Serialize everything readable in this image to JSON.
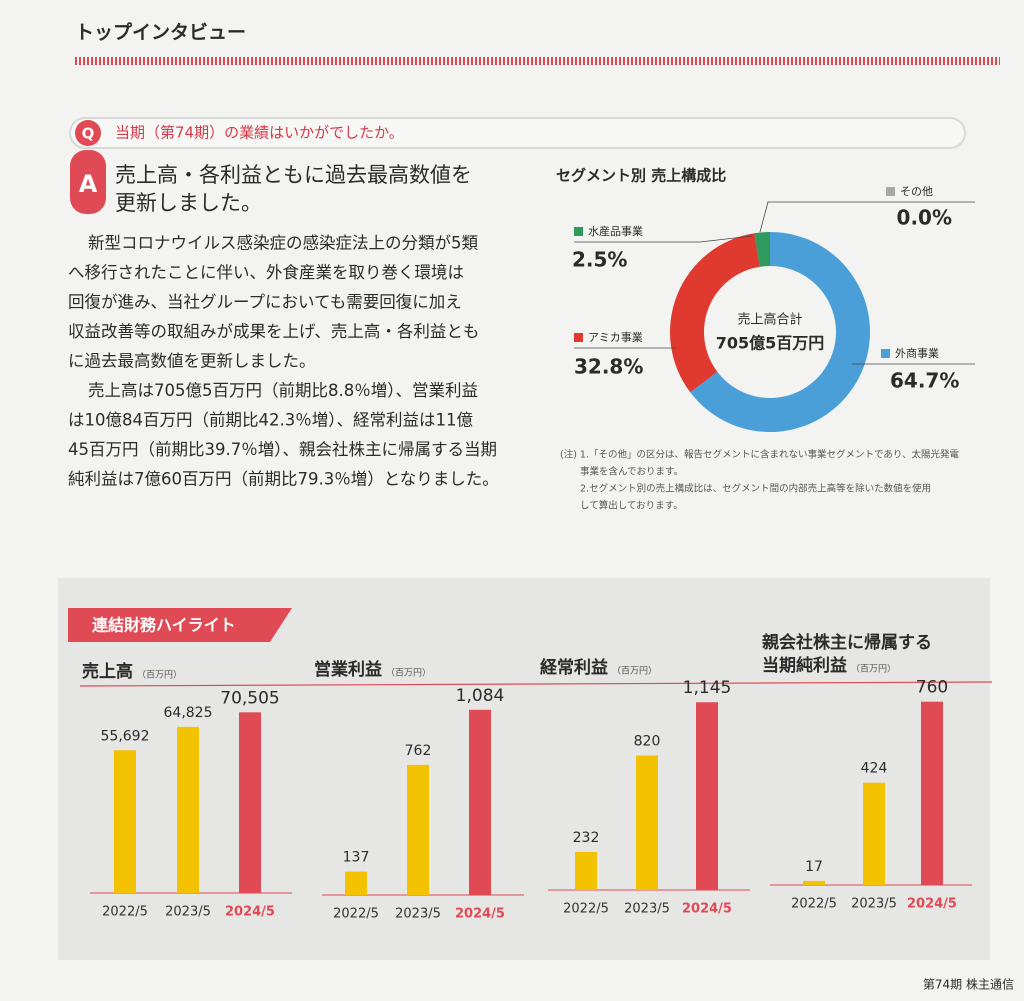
{
  "header": {
    "title": "トップインタビュー"
  },
  "question": {
    "icon": "Q",
    "text": "当期（第74期）の業績はいかがでしたか。"
  },
  "answer": {
    "icon": "A",
    "lines": [
      "売上高・各利益ともに過去最高数値を",
      "更新しました。"
    ]
  },
  "paragraphs": [
    [
      "新型コロナウイルス感染症の感染症法上の分類が5類",
      "へ移行されたことに伴い、外食産業を取り巻く環境は",
      "回復が進み、当社グループにおいても需要回復に加え",
      "収益改善等の取組みが成果を上げ、売上高・各利益とも",
      "に過去最高数値を更新しました。"
    ],
    [
      "売上高は705億5百万円（前期比8.8％増）、営業利益",
      "は10億84百万円（前期比42.3％増）、経常利益は11億",
      "45百万円（前期比39.7％増）、親会社株主に帰属する当期",
      "純利益は7億60百万円（前期比79.3％増）となりました。"
    ]
  ],
  "notes": [
    "(注) 1.「その他」の区分は、報告セグメントに含まれない事業セグメントであり、太陽光発電",
    "事業を含んでおります。",
    "2.セグメント別の売上構成比は、セグメント間の内部売上高等を除いた数値を使用",
    "して算出しております。"
  ],
  "section_title": "連結財務ハイライト",
  "footer": "第74期 株主通信",
  "chart_data": [
    {
      "type": "pie",
      "title": "セグメント別 売上構成比",
      "center_label": [
        "売上高合計",
        "705億5百万円"
      ],
      "donut": true,
      "series": [
        {
          "name": "外商事業",
          "color": "#4b9fd8",
          "values": [
            64.7
          ],
          "value_labels": [
            "64.7%"
          ]
        },
        {
          "name": "アミカ事業",
          "color": "#e0392f",
          "values": [
            32.8
          ],
          "value_labels": [
            "32.8%"
          ]
        },
        {
          "name": "水産品事業",
          "color": "#2e9a5c",
          "values": [
            2.5
          ],
          "value_labels": [
            "2.5%"
          ]
        },
        {
          "name": "その他",
          "color": "#a8a8a8",
          "values": [
            0.0
          ],
          "value_labels": [
            "0.0%"
          ]
        }
      ]
    },
    {
      "type": "bar",
      "title": [
        "売上高"
      ],
      "unit": "（百万円）",
      "categories": [
        "2022/5",
        "2023/5",
        "2024/5"
      ],
      "values": [
        55692,
        64825,
        70505
      ],
      "value_labels": [
        "55,692",
        "64,825",
        "70,505"
      ],
      "colors": [
        "#f2c100",
        "#f2c100",
        "#e04a55"
      ],
      "label_colors": [
        "#333333",
        "#333333",
        "#e04a55"
      ],
      "ylim": [
        0,
        80000
      ]
    },
    {
      "type": "bar",
      "title": [
        "営業利益"
      ],
      "unit": "（百万円）",
      "categories": [
        "2022/5",
        "2023/5",
        "2024/5"
      ],
      "values": [
        137,
        762,
        1084
      ],
      "value_labels": [
        "137",
        "762",
        "1,084"
      ],
      "colors": [
        "#f2c100",
        "#f2c100",
        "#e04a55"
      ],
      "label_colors": [
        "#333333",
        "#333333",
        "#e04a55"
      ],
      "ylim": [
        0,
        1200
      ]
    },
    {
      "type": "bar",
      "title": [
        "経常利益"
      ],
      "unit": "（百万円）",
      "categories": [
        "2022/5",
        "2023/5",
        "2024/5"
      ],
      "values": [
        232,
        820,
        1145
      ],
      "value_labels": [
        "232",
        "820",
        "1,145"
      ],
      "colors": [
        "#f2c100",
        "#f2c100",
        "#e04a55"
      ],
      "label_colors": [
        "#333333",
        "#333333",
        "#e04a55"
      ],
      "ylim": [
        0,
        1250
      ]
    },
    {
      "type": "bar",
      "title": [
        "親会社株主に帰属する",
        "当期純利益"
      ],
      "unit": "（百万円）",
      "categories": [
        "2022/5",
        "2023/5",
        "2024/5"
      ],
      "values": [
        17,
        424,
        760
      ],
      "value_labels": [
        "17",
        "424",
        "760"
      ],
      "colors": [
        "#f2c100",
        "#f2c100",
        "#e04a55"
      ],
      "label_colors": [
        "#333333",
        "#333333",
        "#e04a55"
      ],
      "ylim": [
        0,
        850
      ]
    }
  ]
}
